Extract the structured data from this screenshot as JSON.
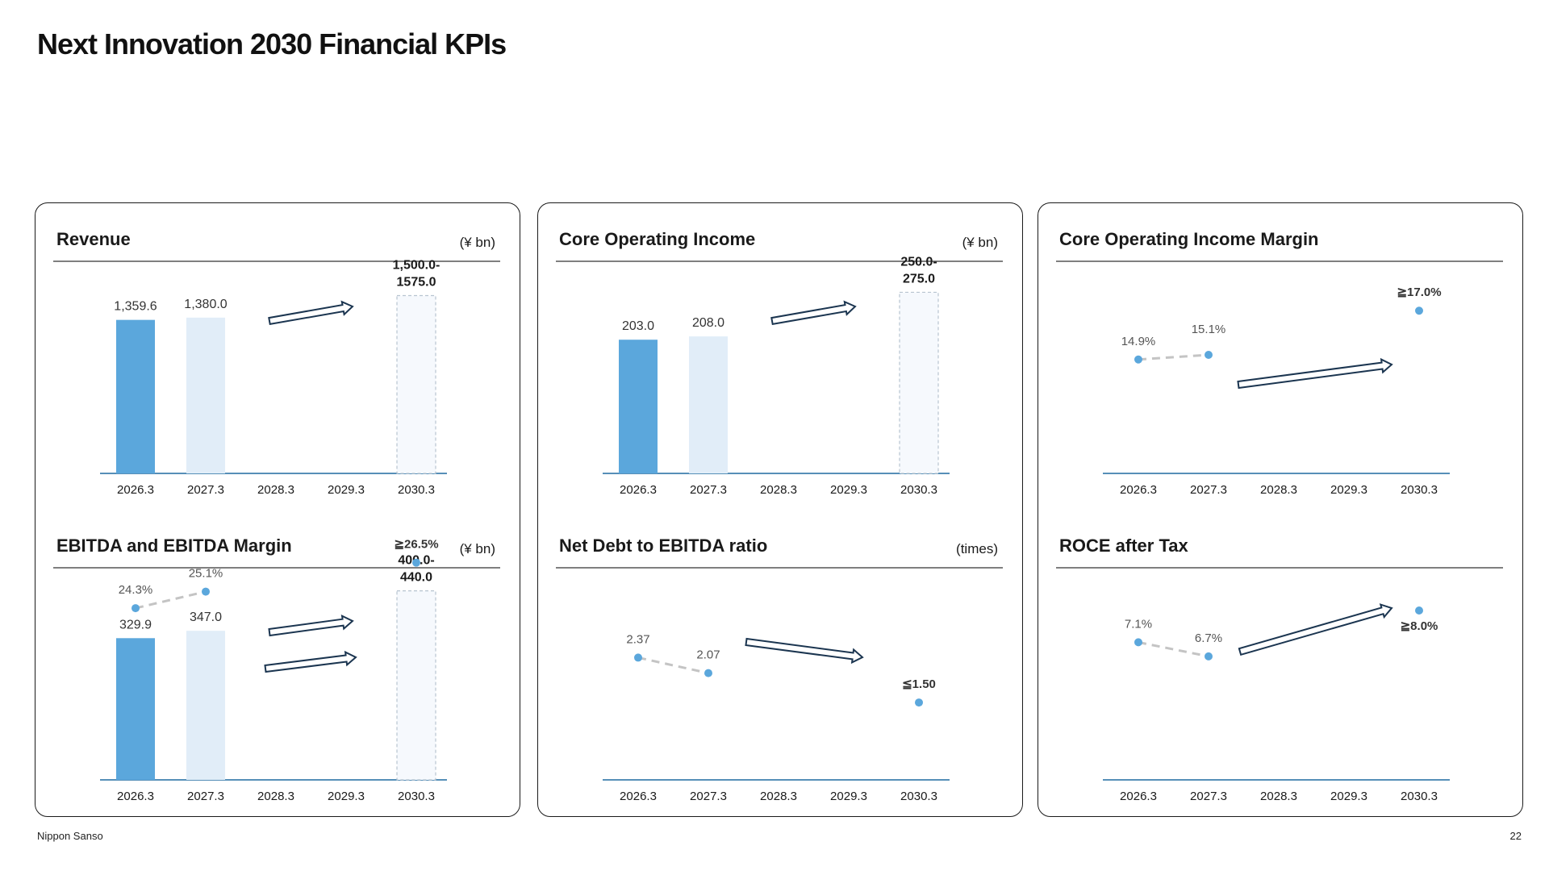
{
  "page": {
    "title": "Next Innovation 2030 Financial KPIs",
    "footer_company": "Nippon Sanso",
    "page_number": "22"
  },
  "colors": {
    "actual_bar": "#5ba7dc",
    "forecast_bar": "#e1edf8",
    "target_bar_fill": "#f6f9fd",
    "target_bar_border": "#b8c4d0",
    "axis": "#3e7fae",
    "dot": "#5ba7dc",
    "dashed_line": "#c4c4c4",
    "arrow_outline": "#1b3550",
    "rule": "#333333"
  },
  "chart_data": [
    {
      "id": "revenue",
      "type": "bar",
      "title": "Revenue",
      "unit": "(¥ bn)",
      "categories": [
        "2026.3",
        "2027.3",
        "2028.3",
        "2029.3",
        "2030.3"
      ],
      "bars": [
        {
          "category": "2026.3",
          "value": 1359.6,
          "label": "1,359.6",
          "style": "actual"
        },
        {
          "category": "2027.3",
          "value": 1380.0,
          "label": "1,380.0",
          "style": "forecast"
        },
        {
          "category": "2030.3",
          "value": 1575.0,
          "label": [
            "1,500.0-",
            "1575.0"
          ],
          "style": "target",
          "range": [
            1500.0,
            1575.0
          ]
        }
      ],
      "ylim": [
        0,
        1750
      ],
      "trend_arrow": "up"
    },
    {
      "id": "core-operating-income",
      "type": "bar",
      "title": "Core Operating Income",
      "unit": "(¥ bn)",
      "categories": [
        "2026.3",
        "2027.3",
        "2028.3",
        "2029.3",
        "2030.3"
      ],
      "bars": [
        {
          "category": "2026.3",
          "value": 203.0,
          "label": "203.0",
          "style": "actual"
        },
        {
          "category": "2027.3",
          "value": 208.0,
          "label": "208.0",
          "style": "forecast"
        },
        {
          "category": "2030.3",
          "value": 275.0,
          "label": [
            "250.0-",
            "275.0"
          ],
          "style": "target",
          "range": [
            250.0,
            275.0
          ]
        }
      ],
      "ylim": [
        0,
        300
      ],
      "trend_arrow": "up"
    },
    {
      "id": "core-operating-income-margin",
      "type": "line",
      "title": "Core Operating Income Margin",
      "categories": [
        "2026.3",
        "2027.3",
        "2028.3",
        "2029.3",
        "2030.3"
      ],
      "points": [
        {
          "category": "2026.3",
          "value": 14.9,
          "label": "14.9%"
        },
        {
          "category": "2027.3",
          "value": 15.1,
          "label": "15.1%"
        },
        {
          "category": "2030.3",
          "value": 17.0,
          "label": "≧17.0%"
        }
      ],
      "ylim": [
        10,
        18.5
      ],
      "trend_arrow": "up"
    },
    {
      "id": "ebitda",
      "type": "bar",
      "title": "EBITDA and EBITDA Margin",
      "unit": "(¥ bn)",
      "categories": [
        "2026.3",
        "2027.3",
        "2028.3",
        "2029.3",
        "2030.3"
      ],
      "bars": [
        {
          "category": "2026.3",
          "value": 329.9,
          "label": "329.9",
          "style": "actual"
        },
        {
          "category": "2027.3",
          "value": 347.0,
          "label": "347.0",
          "style": "forecast"
        },
        {
          "category": "2030.3",
          "value": 440.0,
          "label": [
            "400.0-",
            "440.0"
          ],
          "style": "target",
          "range": [
            400.0,
            440.0
          ]
        }
      ],
      "ylim": [
        0,
        460
      ],
      "margin_series": {
        "points": [
          {
            "category": "2026.3",
            "value": 24.3,
            "label": "24.3%"
          },
          {
            "category": "2027.3",
            "value": 25.1,
            "label": "25.1%"
          },
          {
            "category": "2030.3",
            "value": 26.5,
            "label": "≧26.5%"
          }
        ],
        "ylim": [
          16,
          27.5
        ]
      },
      "trend_arrow": "up"
    },
    {
      "id": "net-debt-to-ebitda",
      "type": "line",
      "title": "Net Debt to EBITDA ratio",
      "unit": "(times)",
      "categories": [
        "2026.3",
        "2027.3",
        "2028.3",
        "2029.3",
        "2030.3"
      ],
      "points": [
        {
          "category": "2026.3",
          "value": 2.37,
          "label": "2.37"
        },
        {
          "category": "2027.3",
          "value": 2.07,
          "label": "2.07"
        },
        {
          "category": "2030.3",
          "value": 1.5,
          "label": "≦1.50"
        }
      ],
      "ylim": [
        0,
        4.3
      ],
      "trend_arrow": "down"
    },
    {
      "id": "roce-after-tax",
      "type": "line",
      "title": "ROCE after Tax",
      "categories": [
        "2026.3",
        "2027.3",
        "2028.3",
        "2029.3",
        "2030.3"
      ],
      "points": [
        {
          "category": "2026.3",
          "value": 7.1,
          "label": "7.1%"
        },
        {
          "category": "2027.3",
          "value": 6.7,
          "label": "6.7%"
        },
        {
          "category": "2030.3",
          "value": 8.0,
          "label": "≧8.0%"
        }
      ],
      "ylim": [
        3.2,
        8.8
      ],
      "trend_arrow": "up"
    }
  ]
}
